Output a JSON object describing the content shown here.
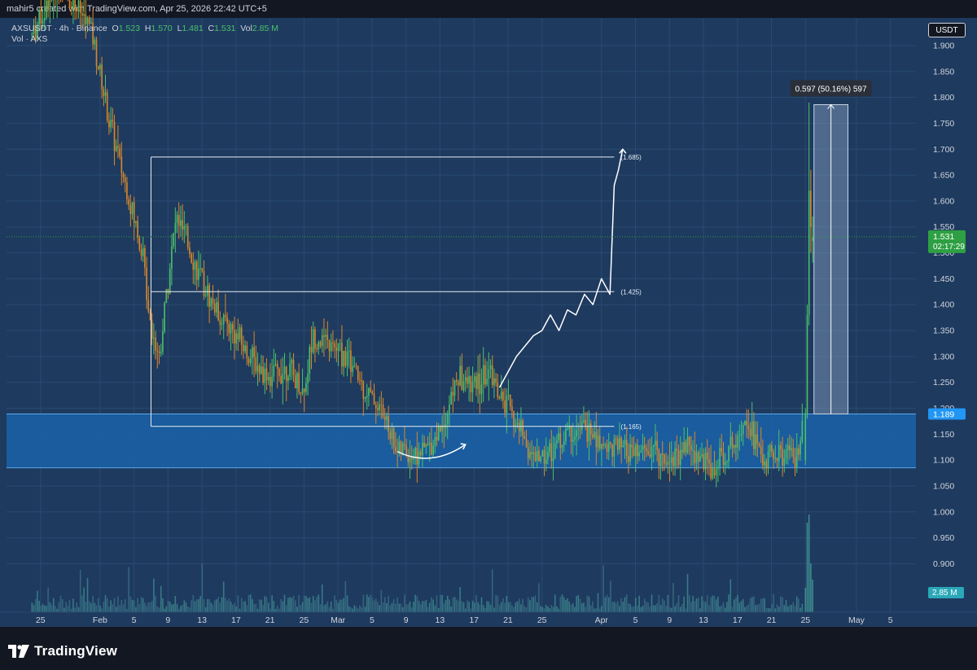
{
  "header": {
    "credit": "mahir5 created with TradingView.com, Apr 25, 2026 22:42 UTC+5"
  },
  "legend": {
    "symbol": "AXSUSDT · 4h · Binance",
    "o_label": "O",
    "o_value": "1.523",
    "h_label": "H",
    "h_value": "1.570",
    "l_label": "L",
    "l_value": "1.481",
    "c_label": "C",
    "c_value": "1.531",
    "vol_label": "Vol",
    "vol_value": "2.85 M",
    "vol_series": "Vol · AXS"
  },
  "currency_button": "USDT",
  "badges": {
    "last_price": "1.531",
    "countdown": "02:17:29",
    "zone_top": "1.189",
    "volume": "2.85 M"
  },
  "measure_label": "0.597 (50.16%) 597",
  "footer": {
    "brand": "TradingView"
  },
  "colors": {
    "background": "#1e3a5f",
    "up": "#4cc16b",
    "down": "#d9882a",
    "zone": "#1a63a8",
    "badge_green": "#2ea043",
    "badge_blue": "#2196f3"
  },
  "chart_data": {
    "type": "candlestick",
    "timeframe": "4h",
    "ylim": [
      0.85,
      1.95
    ],
    "yticks": [
      "1.900",
      "1.850",
      "1.800",
      "1.750",
      "1.700",
      "1.650",
      "1.600",
      "1.550",
      "1.500",
      "1.450",
      "1.400",
      "1.350",
      "1.300",
      "1.250",
      "1.200",
      "1.150",
      "1.100",
      "1.050",
      "1.000",
      "0.950",
      "0.900"
    ],
    "xticks": [
      {
        "label": "25",
        "date": "2026-01-25"
      },
      {
        "label": "Feb",
        "date": "2026-02-01"
      },
      {
        "label": "5",
        "date": "2026-02-05"
      },
      {
        "label": "9",
        "date": "2026-02-09"
      },
      {
        "label": "13",
        "date": "2026-02-13"
      },
      {
        "label": "17",
        "date": "2026-02-17"
      },
      {
        "label": "21",
        "date": "2026-02-21"
      },
      {
        "label": "25",
        "date": "2026-02-25"
      },
      {
        "label": "Mar",
        "date": "2026-03-01"
      },
      {
        "label": "5",
        "date": "2026-03-05"
      },
      {
        "label": "9",
        "date": "2026-03-09"
      },
      {
        "label": "13",
        "date": "2026-03-13"
      },
      {
        "label": "17",
        "date": "2026-03-17"
      },
      {
        "label": "21",
        "date": "2026-03-21"
      },
      {
        "label": "25",
        "date": "2026-03-25"
      },
      {
        "label": "Apr",
        "date": "2026-04-01"
      },
      {
        "label": "5",
        "date": "2026-04-05"
      },
      {
        "label": "9",
        "date": "2026-04-09"
      },
      {
        "label": "13",
        "date": "2026-04-13"
      },
      {
        "label": "17",
        "date": "2026-04-17"
      },
      {
        "label": "21",
        "date": "2026-04-21"
      },
      {
        "label": "25",
        "date": "2026-04-25"
      },
      {
        "label": "May",
        "date": "2026-05-01"
      },
      {
        "label": "5",
        "date": "2026-05-05"
      }
    ],
    "price_path": [
      [
        "2026-01-24",
        1.92
      ],
      [
        "2026-01-27",
        2.02
      ],
      [
        "2026-01-29",
        1.98
      ],
      [
        "2026-01-31",
        1.93
      ],
      [
        "2026-02-02",
        1.76
      ],
      [
        "2026-02-04",
        1.63
      ],
      [
        "2026-02-06",
        1.5
      ],
      [
        "2026-02-07",
        1.36
      ],
      [
        "2026-02-08",
        1.3
      ],
      [
        "2026-02-09",
        1.45
      ],
      [
        "2026-02-10",
        1.57
      ],
      [
        "2026-02-11",
        1.53
      ],
      [
        "2026-02-13",
        1.44
      ],
      [
        "2026-02-15",
        1.38
      ],
      [
        "2026-02-17",
        1.34
      ],
      [
        "2026-02-19",
        1.29
      ],
      [
        "2026-02-21",
        1.26
      ],
      [
        "2026-02-23",
        1.28
      ],
      [
        "2026-02-25",
        1.23
      ],
      [
        "2026-02-26",
        1.34
      ],
      [
        "2026-02-28",
        1.32
      ],
      [
        "2026-03-02",
        1.3
      ],
      [
        "2026-03-04",
        1.24
      ],
      [
        "2026-03-06",
        1.2
      ],
      [
        "2026-03-08",
        1.12
      ],
      [
        "2026-03-10",
        1.11
      ],
      [
        "2026-03-12",
        1.13
      ],
      [
        "2026-03-14",
        1.2
      ],
      [
        "2026-03-15",
        1.26
      ],
      [
        "2026-03-17",
        1.24
      ],
      [
        "2026-03-19",
        1.27
      ],
      [
        "2026-03-20",
        1.22
      ],
      [
        "2026-03-21",
        1.2
      ],
      [
        "2026-03-23",
        1.14
      ],
      [
        "2026-03-24",
        1.1
      ],
      [
        "2026-03-26",
        1.12
      ],
      [
        "2026-03-28",
        1.15
      ],
      [
        "2026-03-30",
        1.16
      ],
      [
        "2026-04-01",
        1.13
      ],
      [
        "2026-04-03",
        1.12
      ],
      [
        "2026-04-05",
        1.11
      ],
      [
        "2026-04-07",
        1.12
      ],
      [
        "2026-04-09",
        1.1
      ],
      [
        "2026-04-11",
        1.13
      ],
      [
        "2026-04-13",
        1.1
      ],
      [
        "2026-04-14",
        1.08
      ],
      [
        "2026-04-16",
        1.12
      ],
      [
        "2026-04-18",
        1.19
      ],
      [
        "2026-04-19",
        1.14
      ],
      [
        "2026-04-20",
        1.1
      ],
      [
        "2026-04-22",
        1.11
      ],
      [
        "2026-04-24",
        1.1
      ],
      [
        "2026-04-25",
        1.19
      ],
      [
        "2026-04-25T08",
        1.55
      ],
      [
        "2026-04-25T16",
        1.65
      ],
      [
        "2026-04-25T22",
        1.531
      ]
    ],
    "support_zone": {
      "top": 1.189,
      "bottom": 1.085
    },
    "levels": [
      {
        "label": "(1.685)",
        "value": 1.685
      },
      {
        "label": "(1.425)",
        "value": 1.425
      },
      {
        "label": "(1.165)",
        "value": 1.165
      }
    ],
    "projection_path": [
      [
        "2026-03-20",
        1.24
      ],
      [
        "2026-03-22",
        1.3
      ],
      [
        "2026-03-24",
        1.34
      ],
      [
        "2026-03-25",
        1.35
      ],
      [
        "2026-03-26",
        1.38
      ],
      [
        "2026-03-27",
        1.35
      ],
      [
        "2026-03-28",
        1.39
      ],
      [
        "2026-03-29",
        1.38
      ],
      [
        "2026-03-30",
        1.42
      ],
      [
        "2026-03-31",
        1.4
      ],
      [
        "2026-04-01",
        1.45
      ],
      [
        "2026-04-02",
        1.42
      ],
      [
        "2026-04-02T12",
        1.63
      ],
      [
        "2026-04-03",
        1.66
      ],
      [
        "2026-04-03T12",
        1.7
      ]
    ],
    "base_arc": {
      "from": [
        "2026-03-08",
        1.11
      ],
      "to": [
        "2026-03-16",
        1.13
      ]
    },
    "measure": {
      "from_date": "2026-04-26",
      "to_date": "2026-04-30",
      "low": 1.189,
      "high": 1.786,
      "label": "0.597 (50.16%) 597"
    },
    "last_price": 1.531
  }
}
